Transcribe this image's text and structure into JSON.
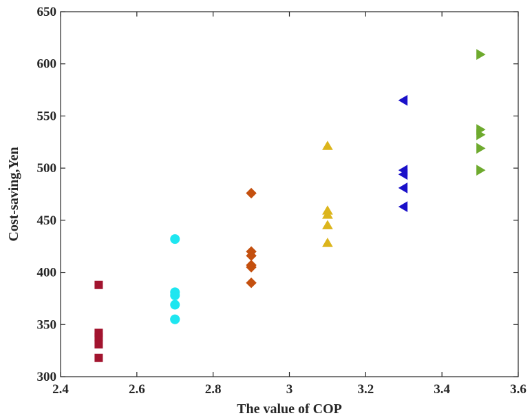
{
  "chart_data": {
    "type": "scatter",
    "title": "",
    "xlabel": "The value of COP",
    "ylabel": "Cost-saving,Yen",
    "xlim": [
      2.4,
      3.6
    ],
    "ylim": [
      300,
      650
    ],
    "xticks": [
      "2.4",
      "2.6",
      "2.8",
      "3",
      "3.2",
      "3.4",
      "3.6"
    ],
    "yticks": [
      "300",
      "350",
      "400",
      "450",
      "500",
      "550",
      "600",
      "650"
    ],
    "grid": false,
    "legend": "none",
    "series": [
      {
        "marker": "square",
        "color": "#a2142f",
        "x": [
          2.5,
          2.5,
          2.5,
          2.5,
          2.5
        ],
        "y": [
          388,
          342,
          338,
          331,
          318
        ]
      },
      {
        "marker": "circle",
        "color": "#1ee6f0",
        "x": [
          2.7,
          2.7,
          2.7,
          2.7,
          2.7,
          2.7
        ],
        "y": [
          432,
          381,
          378,
          369,
          355,
          355
        ]
      },
      {
        "marker": "diamond",
        "color": "#c4500f",
        "x": [
          2.9,
          2.9,
          2.9,
          2.9,
          2.9,
          2.9
        ],
        "y": [
          476,
          420,
          416,
          407,
          405,
          390
        ]
      },
      {
        "marker": "triangle-up",
        "color": "#dcb51c",
        "x": [
          3.1,
          3.1,
          3.1,
          3.1,
          3.1
        ],
        "y": [
          521,
          459,
          455,
          445,
          428
        ]
      },
      {
        "marker": "triangle-left",
        "color": "#1a10c9",
        "x": [
          3.3,
          3.3,
          3.3,
          3.3,
          3.3
        ],
        "y": [
          565,
          498,
          494,
          481,
          463
        ]
      },
      {
        "marker": "triangle-right",
        "color": "#6eaa2e",
        "x": [
          3.5,
          3.5,
          3.5,
          3.5,
          3.5
        ],
        "y": [
          609,
          537,
          532,
          519,
          498
        ]
      }
    ]
  }
}
